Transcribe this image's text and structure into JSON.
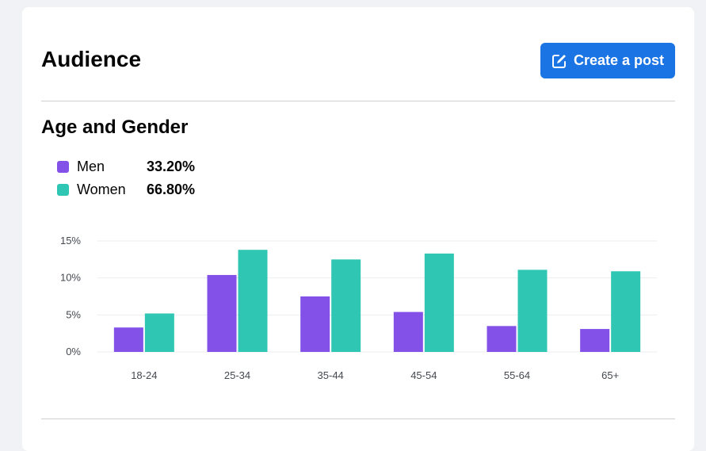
{
  "header": {
    "title": "Audience",
    "create_label": "Create a post",
    "create_icon": "edit-icon"
  },
  "section": {
    "title": "Age and Gender"
  },
  "legend": [
    {
      "name": "Men",
      "value": "33.20%",
      "color": "#8350e8"
    },
    {
      "name": "Women",
      "value": "66.80%",
      "color": "#2fc6b4"
    }
  ],
  "chart_data": {
    "type": "bar",
    "categories": [
      "18-24",
      "25-34",
      "35-44",
      "45-54",
      "55-64",
      "65+"
    ],
    "series": [
      {
        "name": "Men",
        "values": [
          3.3,
          10.4,
          7.5,
          5.4,
          3.5,
          3.1
        ],
        "color": "#8350e8"
      },
      {
        "name": "Women",
        "values": [
          5.2,
          13.8,
          12.5,
          13.3,
          11.1,
          10.9
        ],
        "color": "#2fc6b4"
      }
    ],
    "yticks": [
      "0%",
      "5%",
      "10%",
      "15%"
    ],
    "ylim": [
      0,
      15
    ],
    "grid": true,
    "legend": "top-left"
  }
}
